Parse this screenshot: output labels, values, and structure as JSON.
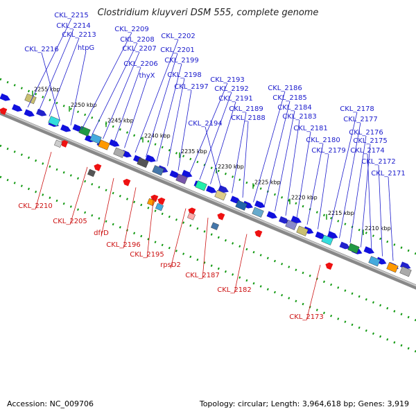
{
  "title": "Clostridium kluyveri DSM 555, complete genome",
  "footer": {
    "accession": "Accession: NC_009706",
    "summary": "Topology: circular; Length: 3,964,618 bp; Genes: 3,919"
  },
  "colors": {
    "plus_label": "#1a1acc",
    "minus_label": "#cc1111",
    "backbone": "#888888",
    "cds_plus": "#1111dd",
    "cds_minus": "#ee1111",
    "ruler_dots": "#119911"
  },
  "ticks": [
    "2255 kbp",
    "2250 kbp",
    "2245 kbp",
    "2240 kbp",
    "2235 kbp",
    "2230 kbp",
    "2225 kbp",
    "2220 kbp",
    "2215 kbp",
    "2210 kbp"
  ],
  "plus_labels": [
    "CKL_2215",
    "CKL_2214",
    "CKL_2213",
    "CKL_2216",
    "htpG",
    "CKL_2209",
    "CKL_2208",
    "CKL_2207",
    "CKL_2206",
    "thyX",
    "CKL_2202",
    "CKL_2201",
    "CKL_2199",
    "CKL_2198",
    "CKL_2197",
    "CKL_2193",
    "CKL_2192",
    "CKL_2191",
    "CKL_2194",
    "CKL_2189",
    "CKL_2188",
    "CKL_2186",
    "CKL_2185",
    "CKL_2184",
    "CKL_2183",
    "CKL_2181",
    "CKL_2180",
    "CKL_2179",
    "CKL_2178",
    "CKL_2177",
    "CKL_2176",
    "CKL_2175",
    "CKL_2174",
    "CKL_2172",
    "CKL_2171"
  ],
  "minus_labels": [
    "CKL_2210",
    "CKL_2205",
    "dfrD",
    "CKL_2196",
    "CKL_2195",
    "rpsD2",
    "CKL_2187",
    "CKL_2182",
    "CKL_2173"
  ]
}
